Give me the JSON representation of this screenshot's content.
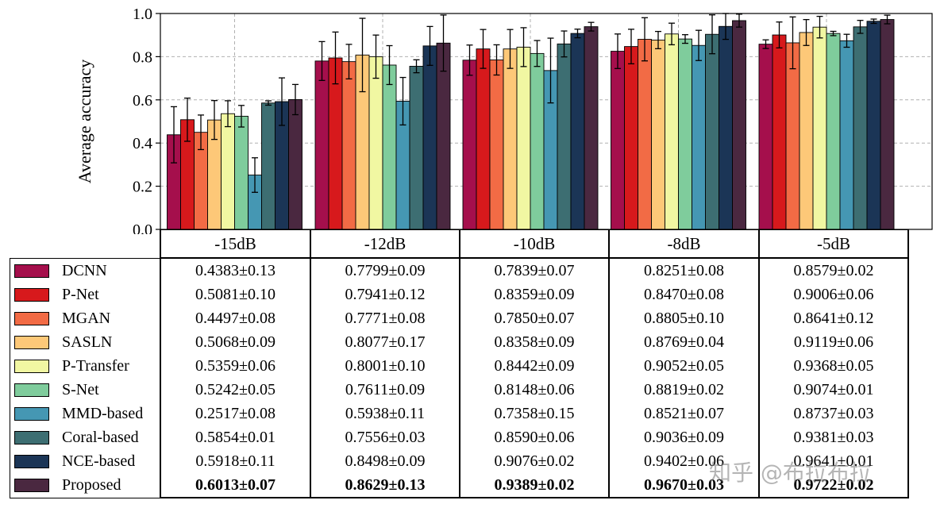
{
  "chart_data": {
    "type": "bar",
    "ylabel": "Average accuracy",
    "ylim": [
      0.0,
      1.0
    ],
    "yticks": [
      "0.0",
      "0.2",
      "0.4",
      "0.6",
      "0.8",
      "1.0"
    ],
    "grid": true,
    "categories": [
      "-15dB",
      "-12dB",
      "-10dB",
      "-8dB",
      "-5dB"
    ],
    "series": [
      {
        "name": "DCNN",
        "color": "#a50f4c",
        "values": [
          0.4383,
          0.7799,
          0.7839,
          0.8251,
          0.8579
        ],
        "errors": [
          0.13,
          0.09,
          0.07,
          0.08,
          0.02
        ],
        "labels": [
          "0.4383±0.13",
          "0.7799±0.09",
          "0.7839±0.07",
          "0.8251±0.08",
          "0.8579±0.02"
        ]
      },
      {
        "name": "P-Net",
        "color": "#d7191c",
        "values": [
          0.5081,
          0.7941,
          0.8359,
          0.847,
          0.9006
        ],
        "errors": [
          0.1,
          0.12,
          0.09,
          0.08,
          0.06
        ],
        "labels": [
          "0.5081±0.10",
          "0.7941±0.12",
          "0.8359±0.09",
          "0.8470±0.08",
          "0.9006±0.06"
        ]
      },
      {
        "name": "MGAN",
        "color": "#f26b45",
        "values": [
          0.4497,
          0.7771,
          0.785,
          0.8805,
          0.8641
        ],
        "errors": [
          0.08,
          0.08,
          0.07,
          0.1,
          0.12
        ],
        "labels": [
          "0.4497±0.08",
          "0.7771±0.08",
          "0.7850±0.07",
          "0.8805±0.10",
          "0.8641±0.12"
        ]
      },
      {
        "name": "SASLN",
        "color": "#fdc878",
        "values": [
          0.5068,
          0.8077,
          0.8358,
          0.8769,
          0.9119
        ],
        "errors": [
          0.09,
          0.17,
          0.09,
          0.04,
          0.06
        ],
        "labels": [
          "0.5068±0.09",
          "0.8077±0.17",
          "0.8358±0.09",
          "0.8769±0.04",
          "0.9119±0.06"
        ]
      },
      {
        "name": "P-Transfer",
        "color": "#f1f7a2",
        "values": [
          0.5359,
          0.8001,
          0.8442,
          0.9052,
          0.9368
        ],
        "errors": [
          0.06,
          0.1,
          0.09,
          0.05,
          0.05
        ],
        "labels": [
          "0.5359±0.06",
          "0.8001±0.10",
          "0.8442±0.09",
          "0.9052±0.05",
          "0.9368±0.05"
        ]
      },
      {
        "name": "S-Net",
        "color": "#7fcc9c",
        "values": [
          0.5242,
          0.7611,
          0.8148,
          0.8819,
          0.9074
        ],
        "errors": [
          0.05,
          0.09,
          0.06,
          0.02,
          0.01
        ],
        "labels": [
          "0.5242±0.05",
          "0.7611±0.09",
          "0.8148±0.06",
          "0.8819±0.02",
          "0.9074±0.01"
        ]
      },
      {
        "name": "MMD-based",
        "color": "#4597b3",
        "values": [
          0.2517,
          0.5938,
          0.7358,
          0.8521,
          0.8737
        ],
        "errors": [
          0.08,
          0.11,
          0.15,
          0.07,
          0.03
        ],
        "labels": [
          "0.2517±0.08",
          "0.5938±0.11",
          "0.7358±0.15",
          "0.8521±0.07",
          "0.8737±0.03"
        ]
      },
      {
        "name": "Coral-based",
        "color": "#3d6e72",
        "values": [
          0.5854,
          0.7556,
          0.859,
          0.9036,
          0.9381
        ],
        "errors": [
          0.01,
          0.03,
          0.06,
          0.09,
          0.03
        ],
        "labels": [
          "0.5854±0.01",
          "0.7556±0.03",
          "0.8590±0.06",
          "0.9036±0.09",
          "0.9381±0.03"
        ]
      },
      {
        "name": "NCE-based",
        "color": "#1b3556",
        "values": [
          0.5918,
          0.8498,
          0.9076,
          0.9402,
          0.9641
        ],
        "errors": [
          0.11,
          0.09,
          0.02,
          0.06,
          0.01
        ],
        "labels": [
          "0.5918±0.11",
          "0.8498±0.09",
          "0.9076±0.02",
          "0.9402±0.06",
          "0.9641±0.01"
        ]
      },
      {
        "name": "Proposed",
        "color": "#4a2840",
        "values": [
          0.6013,
          0.8629,
          0.9389,
          0.967,
          0.9722
        ],
        "errors": [
          0.07,
          0.13,
          0.02,
          0.03,
          0.02
        ],
        "labels": [
          "0.6013±0.07",
          "0.8629±0.13",
          "0.9389±0.02",
          "0.9670±0.03",
          "0.9722±0.02"
        ],
        "bold": true
      }
    ]
  },
  "watermark": "知乎 @布拉布拉"
}
